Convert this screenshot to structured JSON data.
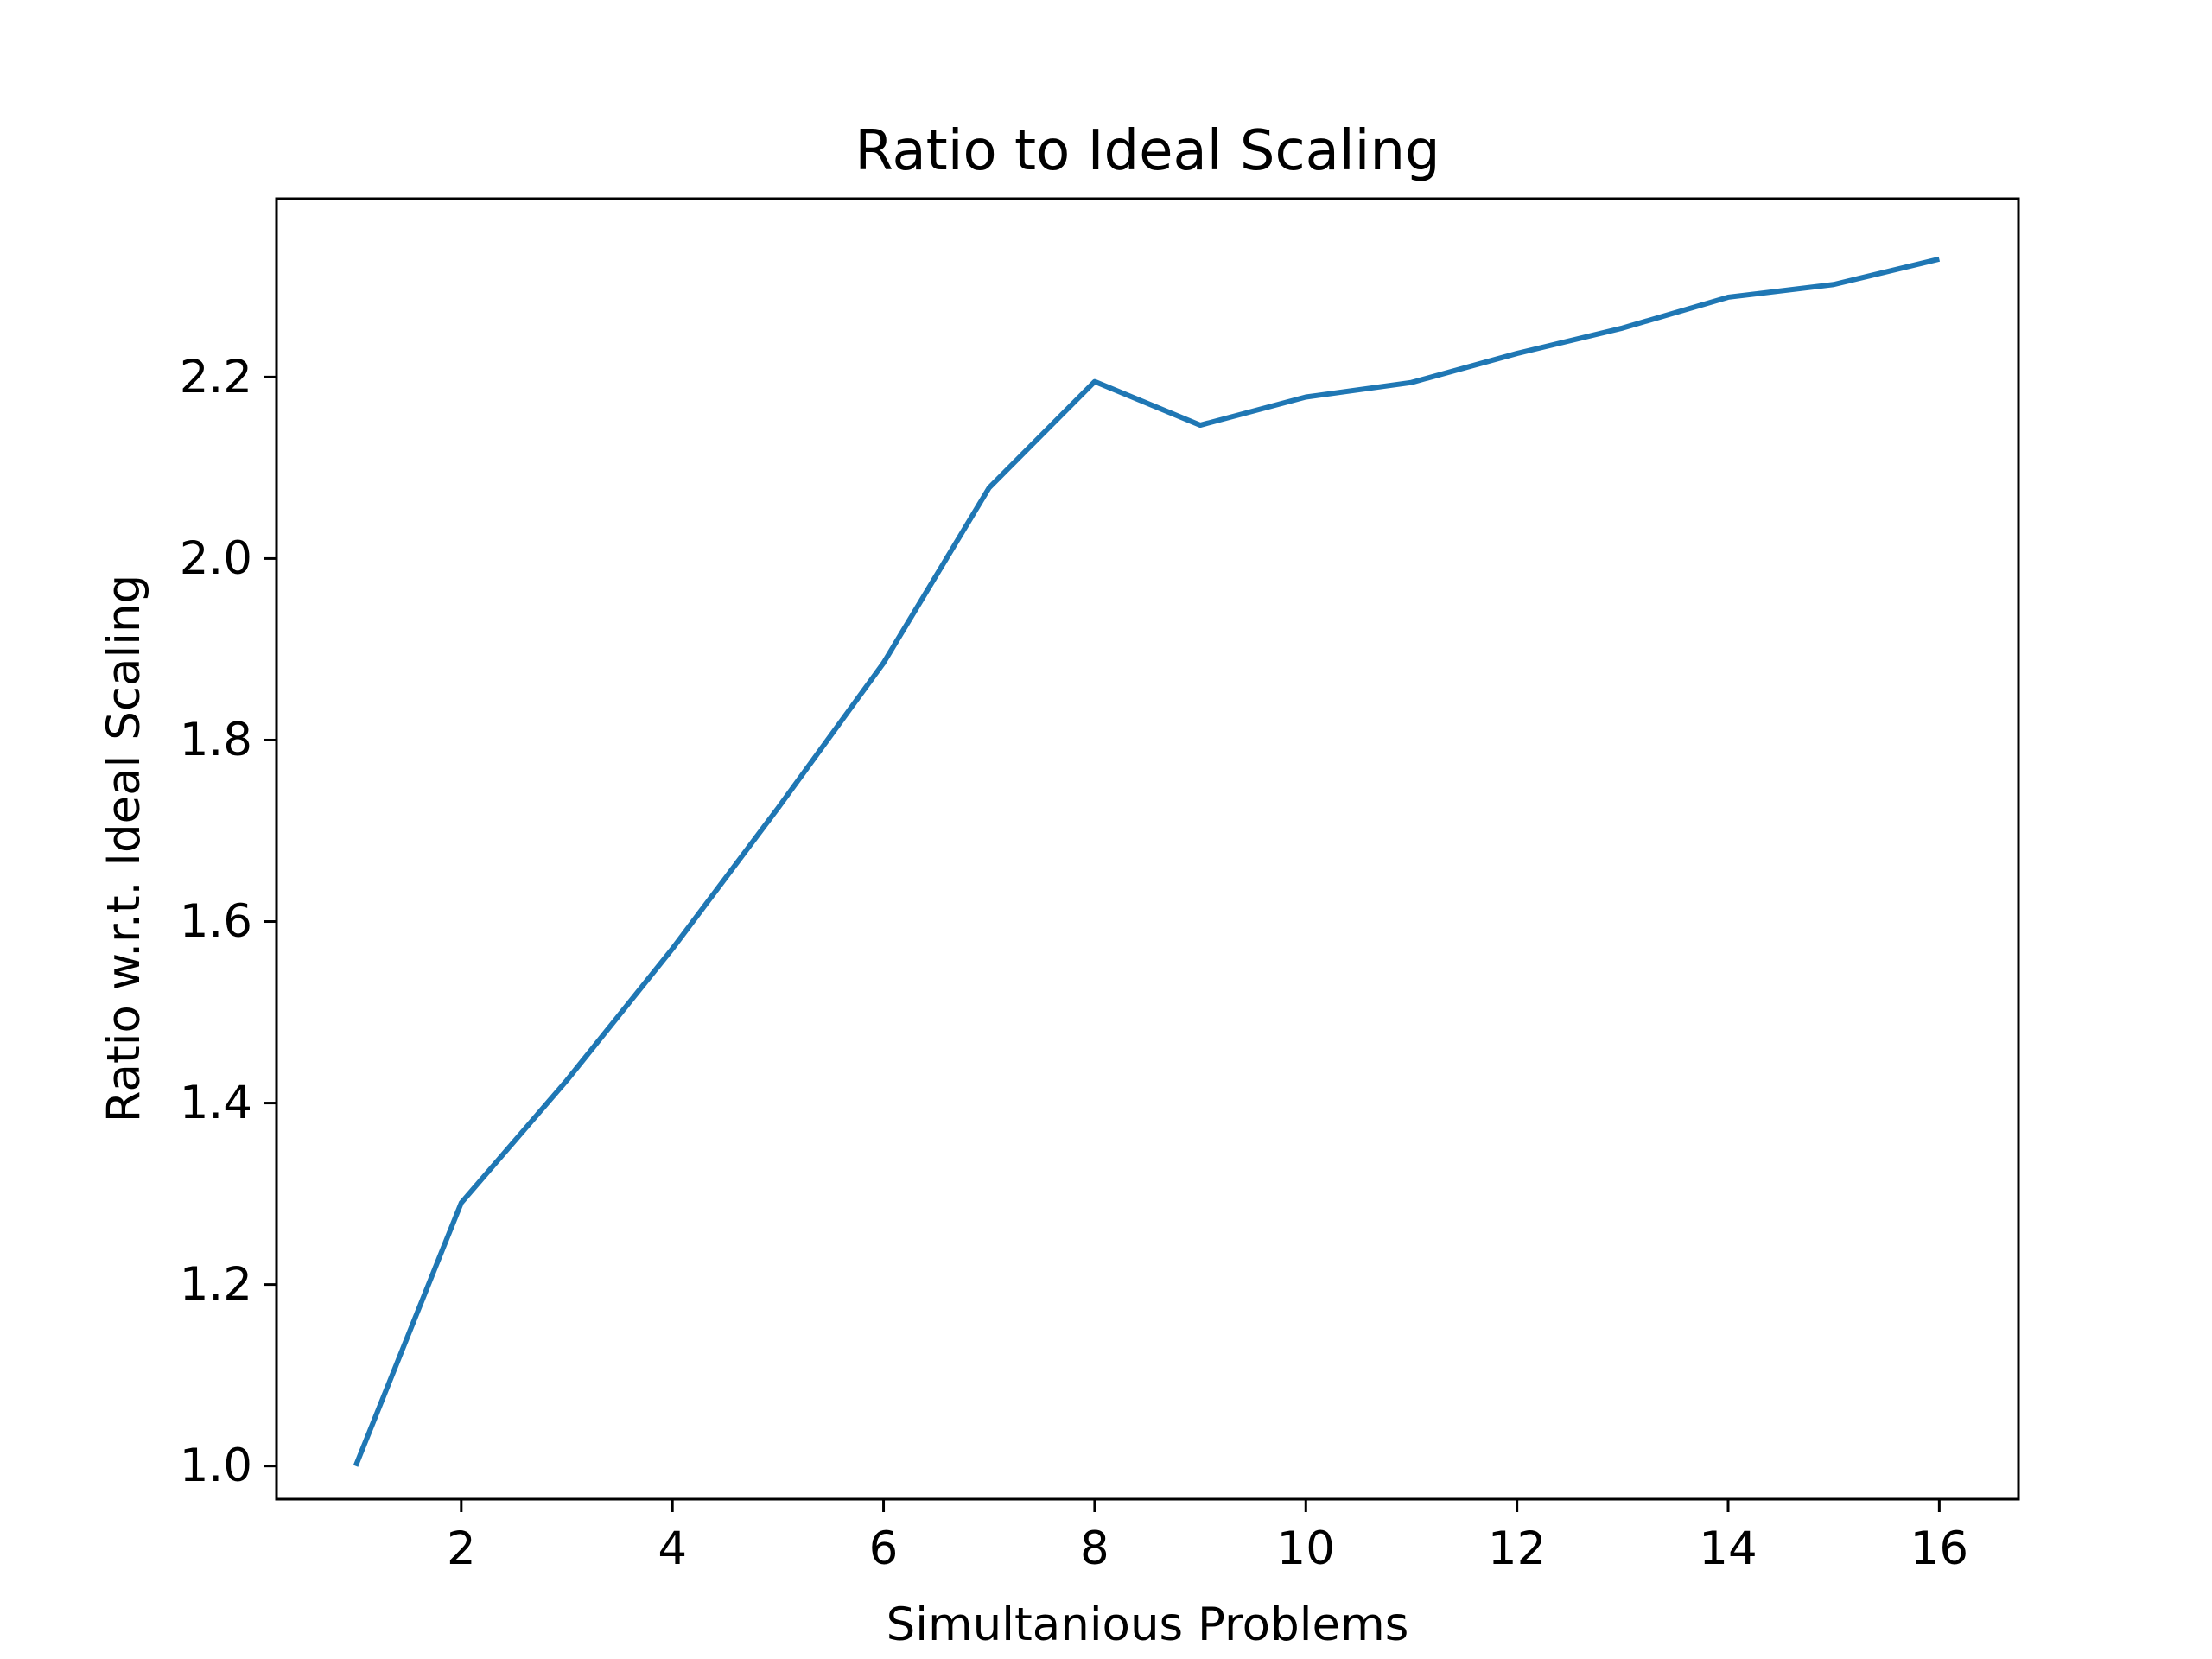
{
  "chart_data": {
    "type": "line",
    "title": "Ratio to Ideal Scaling",
    "xlabel": "Simultanious Problems",
    "ylabel": "Ratio w.r.t. Ideal Scaling",
    "x": [
      1,
      2,
      3,
      4,
      5,
      6,
      7,
      8,
      9,
      10,
      11,
      12,
      13,
      14,
      15,
      16
    ],
    "series": [
      {
        "values": [
          1.0,
          1.29,
          1.425,
          1.57,
          1.725,
          1.885,
          2.078,
          2.195,
          2.147,
          2.178,
          2.194,
          2.226,
          2.254,
          2.288,
          2.302,
          2.33
        ],
        "color": "#1f77b4"
      }
    ],
    "xlim": [
      0.25,
      16.75
    ],
    "ylim": [
      0.9635,
      2.3965
    ],
    "xticks": [
      "2",
      "4",
      "6",
      "8",
      "10",
      "12",
      "14",
      "16"
    ],
    "yticks": [
      "1.0",
      "1.2",
      "1.4",
      "1.6",
      "1.8",
      "2.0",
      "2.2"
    ],
    "grid": false,
    "legend": "none"
  }
}
